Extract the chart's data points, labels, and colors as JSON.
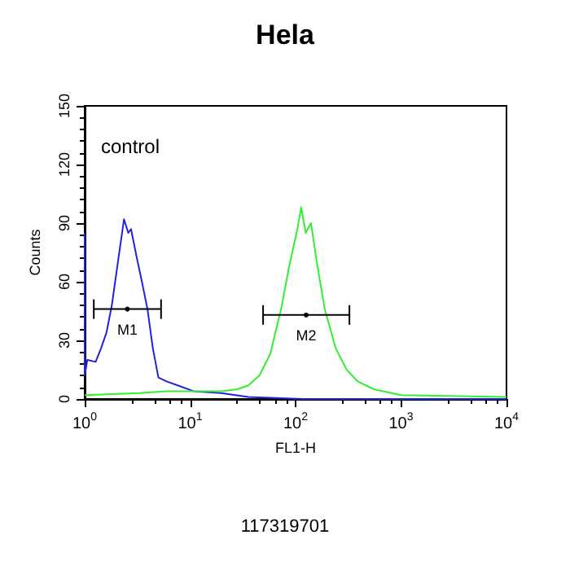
{
  "chart_data": {
    "type": "line",
    "title": "Hela",
    "xlabel": "FL1-H",
    "ylabel": "Counts",
    "log": "x",
    "xlim": [
      1,
      10000
    ],
    "ylim": [
      0,
      150
    ],
    "xticks": [
      {
        "value": 1,
        "label": "10$^{0}$"
      },
      {
        "value": 10,
        "label": "10$^{1}$"
      },
      {
        "value": 100,
        "label": "10$^{2}$"
      },
      {
        "value": 1000,
        "label": "10$^{3}$"
      },
      {
        "value": 10000,
        "label": "10$^{4}$"
      }
    ],
    "yticks": [
      0,
      30,
      60,
      90,
      120,
      150
    ],
    "grid": false,
    "marker": "none",
    "line_style": "solid",
    "series": [
      {
        "color": "#2222dd",
        "x": [
          1,
          1,
          1.06,
          1.27,
          1.43,
          1.61,
          1.81,
          2.04,
          2.36,
          2.59,
          2.75,
          3.1,
          3.49,
          3.94,
          4.43,
          5,
          5.97,
          7.6,
          10.8,
          19.7,
          35.7,
          117,
          1000,
          10000
        ],
        "values": [
          85,
          12,
          20,
          19,
          26,
          34,
          48,
          68,
          92,
          85,
          87,
          73,
          60,
          46,
          26,
          11,
          9,
          7,
          4,
          3,
          1,
          0,
          0,
          0
        ]
      },
      {
        "color": "#33ee33",
        "x": [
          1,
          3.29,
          5.97,
          10.8,
          19.7,
          28.1,
          35.7,
          45.3,
          57.5,
          72.9,
          87.1,
          104,
          113,
          125,
          140,
          158,
          189,
          240,
          305,
          387,
          553,
          1000,
          10000
        ],
        "values": [
          2,
          3,
          4,
          4,
          4,
          5,
          7,
          12,
          23,
          46,
          68,
          87,
          98,
          85,
          90,
          71,
          46,
          26,
          15,
          9,
          5,
          2,
          1
        ]
      },
      {
        "type": "scatter",
        "marker": "circle",
        "color": "#000000",
        "x": [
          2.54
        ],
        "values": [
          46
        ],
        "xerrors": [
          [
            1.22,
            5.3
          ]
        ],
        "value_labels": [
          "M1"
        ]
      },
      {
        "type": "scatter",
        "marker": "circle",
        "color": "#000000",
        "x": [
          126
        ],
        "values": [
          43
        ],
        "xerrors": [
          [
            49.2,
            324
          ]
        ],
        "value_labels": [
          "M2"
        ]
      }
    ],
    "annotations": [
      "control",
      "117319701"
    ]
  }
}
